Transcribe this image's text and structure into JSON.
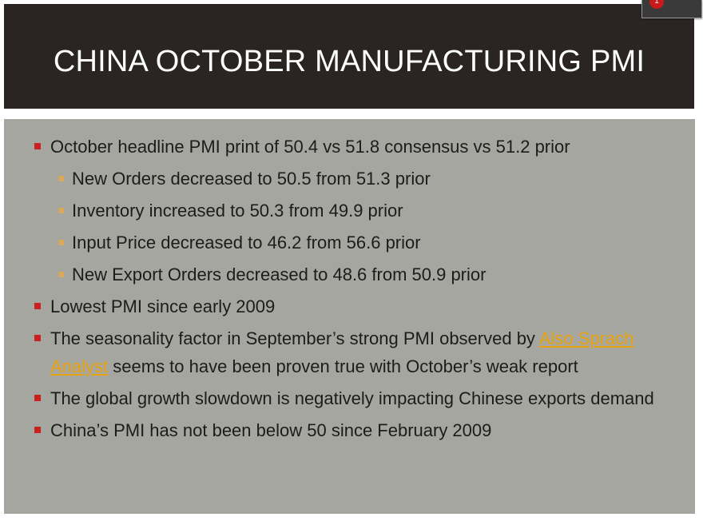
{
  "slide": {
    "title": "CHINA OCTOBER MANUFACTURING PMI",
    "notification_count": "1",
    "bullets": [
      {
        "text": "October headline PMI print of 50.4 vs 51.8 consensus vs 51.2 prior",
        "sub": [
          "New Orders decreased to 50.5 from 51.3 prior",
          "Inventory increased to 50.3 from 49.9 prior",
          "Input Price decreased to 46.2 from 56.6 prior",
          "New Export Orders decreased to 48.6 from 50.9 prior"
        ]
      },
      {
        "text": "Lowest PMI since early 2009"
      },
      {
        "pre": "The seasonality factor in September’s strong PMI observed by ",
        "link": "Also Sprach Analyst",
        "post": " seems to have been proven true with October’s weak report"
      },
      {
        "text": "The global growth slowdown is negatively impacting Chinese exports demand"
      },
      {
        "text": "China’s PMI has not been below 50 since February 2009"
      }
    ]
  },
  "colors": {
    "title_bg": "#2a2423",
    "content_bg": "#a6a6a0",
    "bullet_red": "#cc1f1f",
    "bullet_tan": "#d9a85a",
    "link": "#e8a20c"
  }
}
